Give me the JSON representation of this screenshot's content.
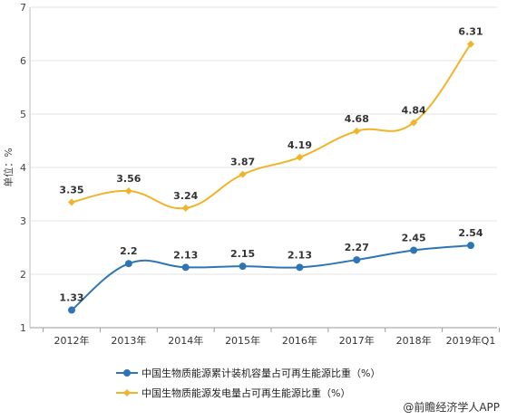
{
  "chart_data": {
    "type": "line",
    "categories": [
      "2012年",
      "2013年",
      "2014年",
      "2015年",
      "2016年",
      "2017年",
      "2018年",
      "2019年Q1"
    ],
    "series": [
      {
        "name": "中国生物质能源累计装机容量占可再生能源比重（%）",
        "values": [
          1.33,
          2.2,
          2.13,
          2.15,
          2.13,
          2.27,
          2.45,
          2.54
        ],
        "labels": [
          "1.33",
          "2.2",
          "2.13",
          "2.15",
          "2.13",
          "2.27",
          "2.45",
          "2.54"
        ],
        "color": "#2e75b6",
        "marker": "circle"
      },
      {
        "name": "中国生物质能源发电量占可再生能源比重（%）",
        "values": [
          3.35,
          3.56,
          3.24,
          3.87,
          4.19,
          4.68,
          4.84,
          6.31
        ],
        "labels": [
          "3.35",
          "3.56",
          "3.24",
          "3.87",
          "4.19",
          "4.68",
          "4.84",
          "6.31"
        ],
        "color": "#f0b429",
        "marker": "diamond"
      }
    ],
    "ylabel": "单位：%",
    "ylim": [
      1,
      7
    ],
    "yticks": [
      "1",
      "2",
      "3",
      "4",
      "5",
      "6",
      "7"
    ],
    "grid": true,
    "legend_position": "bottom"
  },
  "watermark": "@前瞻经济学人APP"
}
